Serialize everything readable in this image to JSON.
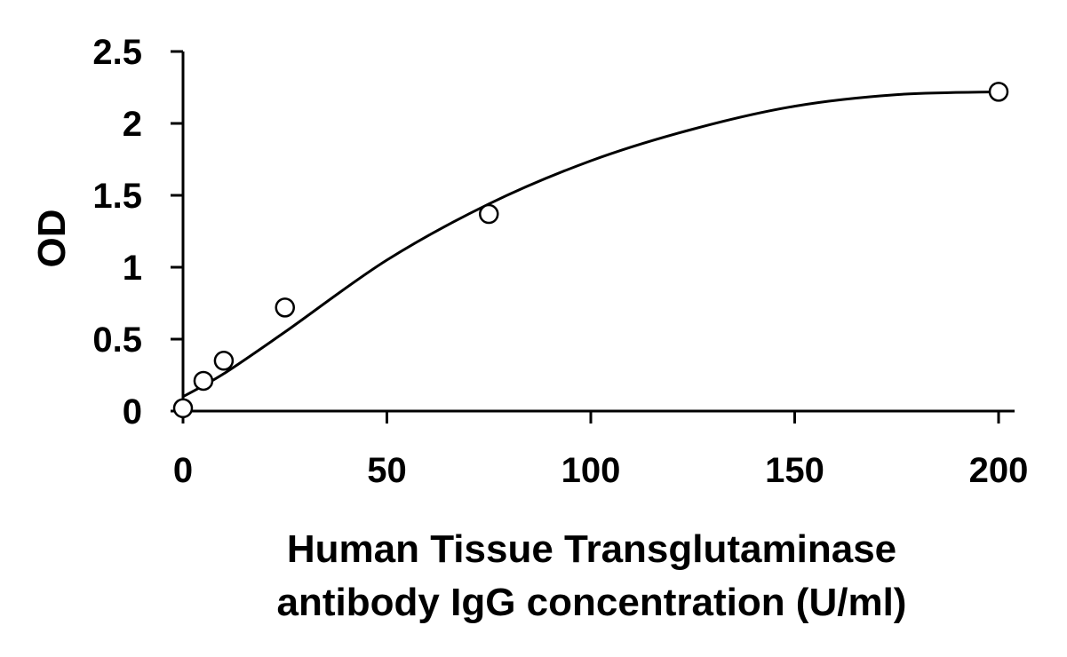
{
  "chart_data": {
    "type": "scatter",
    "title": "",
    "xlabel_lines": [
      "Human Tissue Transglutaminase",
      "antibody IgG concentration (U/ml)"
    ],
    "ylabel": "OD",
    "xlim": [
      0,
      200
    ],
    "ylim": [
      0,
      2.5
    ],
    "x_ticks": [
      0,
      50,
      100,
      150,
      200
    ],
    "x_tick_labels": [
      "0",
      "50",
      "100",
      "150",
      "200"
    ],
    "y_ticks": [
      0,
      0.5,
      1,
      1.5,
      2,
      2.5
    ],
    "y_tick_labels": [
      "0",
      "0.5",
      "1",
      "1.5",
      "2",
      "2.5"
    ],
    "grid": false,
    "legend": "none",
    "series": [
      {
        "points": [
          {
            "x": 0,
            "y": 0.02
          },
          {
            "x": 5,
            "y": 0.21
          },
          {
            "x": 10,
            "y": 0.35
          },
          {
            "x": 25,
            "y": 0.72
          },
          {
            "x": 75,
            "y": 1.37
          },
          {
            "x": 200,
            "y": 2.22
          }
        ],
        "marker": "open-circle",
        "color": "#000000"
      }
    ],
    "fit": {
      "type": "line",
      "color": "#000000",
      "points": [
        {
          "x": 0,
          "y": 0.1
        },
        {
          "x": 10,
          "y": 0.26
        },
        {
          "x": 25,
          "y": 0.55
        },
        {
          "x": 50,
          "y": 1.05
        },
        {
          "x": 75,
          "y": 1.44
        },
        {
          "x": 100,
          "y": 1.74
        },
        {
          "x": 125,
          "y": 1.96
        },
        {
          "x": 150,
          "y": 2.12
        },
        {
          "x": 175,
          "y": 2.2
        },
        {
          "x": 200,
          "y": 2.22
        }
      ]
    }
  }
}
